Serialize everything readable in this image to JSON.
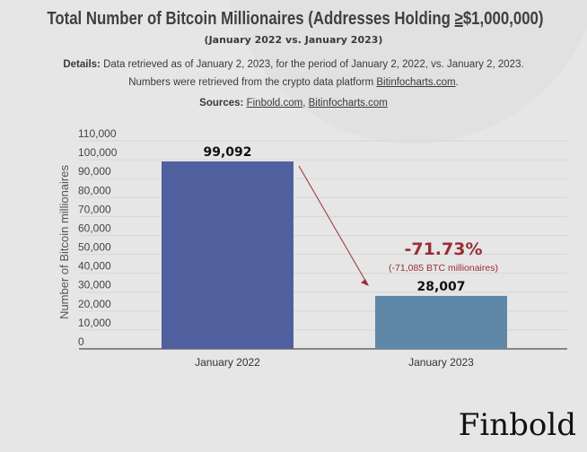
{
  "title_main": "Total Number of Bitcoin Millionaires (Addresses Holding ",
  "title_ge": "≥",
  "title_end": "$1,000,000)",
  "subtitle": "(January 2022 vs. January 2023)",
  "details_label": "Details:",
  "details_text": " Data retrieved as of January 2, 2023, for the period of January 2, 2022, vs. January 2, 2023. Numbers were retrieved from the crypto data platform ",
  "details_link": "Bitinfocharts.com",
  "details_end": ".",
  "sources_label": "Sources:",
  "sources_link1": "Finbold.com",
  "sources_sep": ", ",
  "sources_link2": "Bitinfocharts.com",
  "logo": "Finbold",
  "chart_data": {
    "type": "bar",
    "categories": [
      "January 2022",
      "January 2023"
    ],
    "values": [
      99092,
      28007
    ],
    "data_labels": [
      "99,092",
      "28,007"
    ],
    "colors": [
      "#50609e",
      "#5f88a8"
    ],
    "ylabel": "Number of Bitcoin millionaires",
    "ylim": [
      0,
      110000
    ],
    "yticks": [
      "0",
      "10,000",
      "20,000",
      "30,000",
      "40,000",
      "50,000",
      "60,000",
      "70,000",
      "80,000",
      "90,000",
      "100,000",
      "110,000"
    ],
    "grid": true,
    "annotation_pct": "-71.73%",
    "annotation_detail": "(-71,085 BTC millionaires)",
    "annotation_color": "#9b2d35"
  }
}
